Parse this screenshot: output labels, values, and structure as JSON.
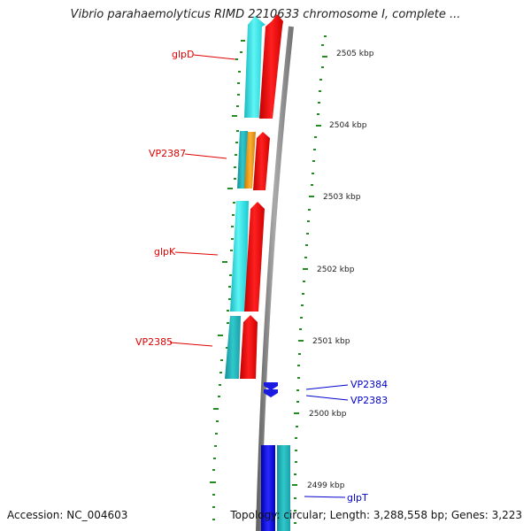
{
  "header": {
    "title": "Vibrio parahaemolyticus RIMD 2210633 chromosome I, complete ..."
  },
  "footer": {
    "accession": "Accession: NC_004603",
    "summary": "Topology: circular; Length: 3,288,558 bp; Genes: 3,223"
  },
  "scale": {
    "ticks": [
      {
        "label": "2505 kbp"
      },
      {
        "label": "2504 kbp"
      },
      {
        "label": "2503 kbp"
      },
      {
        "label": "2502 kbp"
      },
      {
        "label": "2501 kbp"
      },
      {
        "label": "2500 kbp"
      },
      {
        "label": "2499 kbp"
      }
    ]
  },
  "genes": {
    "forward_labels": [
      {
        "name": "glpD"
      },
      {
        "name": "VP2387"
      },
      {
        "name": "glpK"
      },
      {
        "name": "VP2385"
      }
    ],
    "reverse_labels": [
      {
        "name": "VP2384"
      },
      {
        "name": "VP2383"
      },
      {
        "name": "glpT"
      }
    ]
  },
  "colors": {
    "forward_label": "#e00000",
    "reverse_label": "#0000cc",
    "cds": "#ff0000",
    "gene_cyan": "#33e6e6",
    "gene_teal": "#22b8c0",
    "gene_orange": "#f0a020",
    "gene_blue": "#0000ee",
    "backbone": "#888888",
    "tick": "#228b22"
  }
}
